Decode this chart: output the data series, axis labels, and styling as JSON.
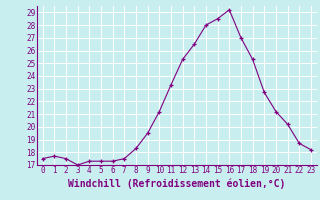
{
  "x": [
    0,
    1,
    2,
    3,
    4,
    5,
    6,
    7,
    8,
    9,
    10,
    11,
    12,
    13,
    14,
    15,
    16,
    17,
    18,
    19,
    20,
    21,
    22,
    23
  ],
  "y": [
    17.5,
    17.7,
    17.5,
    17.0,
    17.3,
    17.3,
    17.3,
    17.5,
    18.3,
    19.5,
    21.2,
    23.3,
    25.3,
    26.5,
    28.0,
    28.5,
    29.2,
    27.0,
    25.3,
    22.7,
    21.2,
    20.2,
    18.7,
    18.2
  ],
  "line_color": "#800080",
  "marker": "+",
  "marker_color": "#800080",
  "bg_color": "#c8eef0",
  "grid_color": "#ffffff",
  "xlabel": "Windchill (Refroidissement éolien,°C)",
  "xlabel_color": "#800080",
  "tick_color": "#800080",
  "ylim_min": 17,
  "ylim_max": 29.5,
  "xlim_min": -0.5,
  "xlim_max": 23.5,
  "yticks": [
    17,
    18,
    19,
    20,
    21,
    22,
    23,
    24,
    25,
    26,
    27,
    28,
    29
  ],
  "xticks": [
    0,
    1,
    2,
    3,
    4,
    5,
    6,
    7,
    8,
    9,
    10,
    11,
    12,
    13,
    14,
    15,
    16,
    17,
    18,
    19,
    20,
    21,
    22,
    23
  ],
  "tick_fontsize": 5.5,
  "xlabel_fontsize": 7.0,
  "linewidth": 0.8,
  "markersize": 3.5
}
